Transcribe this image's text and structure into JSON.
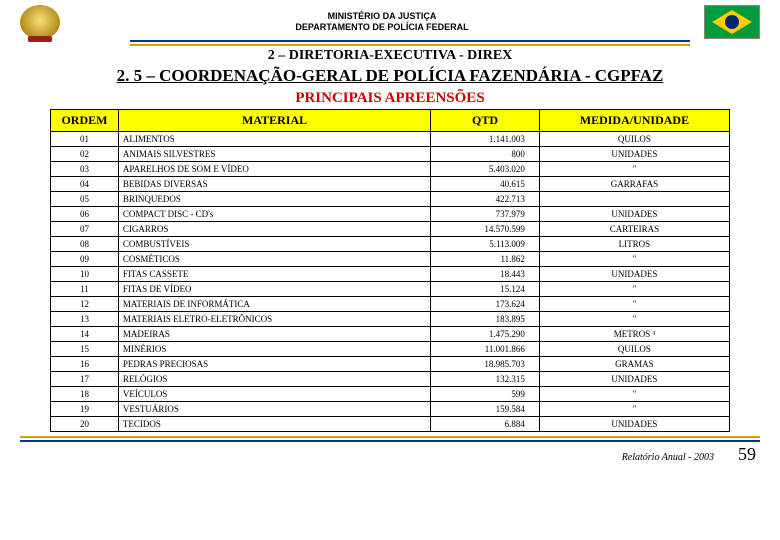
{
  "header": {
    "line1": "MINISTÉRIO DA JUSTIÇA",
    "line2": "DEPARTAMENTO DE POLÍCIA FEDERAL"
  },
  "section": "2 – DIRETORIA-EXECUTIVA - DIREX",
  "title": "2. 5 – COORDENAÇÃO-GERAL DE POLÍCIA FAZENDÁRIA - CGPFAZ",
  "subtitle": "PRINCIPAIS APREENSÕES",
  "table": {
    "columns": [
      "ORDEM",
      "MATERIAL",
      "QTD",
      "MEDIDA/UNIDADE"
    ],
    "rows": [
      [
        "01",
        "ALIMENTOS",
        "1.141.003",
        "QUILOS"
      ],
      [
        "02",
        "ANIMAIS SILVESTRES",
        "800",
        "UNIDADES"
      ],
      [
        "03",
        "APARELHOS DE SOM E VÍDEO",
        "5.403.020",
        "\""
      ],
      [
        "04",
        "BEBIDAS DIVERSAS",
        "40.615",
        "GARRAFAS"
      ],
      [
        "05",
        "BRINQUEDOS",
        "422.713",
        ""
      ],
      [
        "06",
        "COMPACT DISC - CD's",
        "737.979",
        "UNIDADES"
      ],
      [
        "07",
        "CIGARROS",
        "14.570.599",
        "CARTEIRAS"
      ],
      [
        "08",
        "COMBUSTÍVEIS",
        "5.113.009",
        "LITROS"
      ],
      [
        "09",
        "COSMÉTICOS",
        "11.862",
        "\""
      ],
      [
        "10",
        "FITAS CASSETE",
        "18.443",
        "UNIDADES"
      ],
      [
        "11",
        "FITAS DE VÍDEO",
        "15.124",
        "\""
      ],
      [
        "12",
        "MATERIAIS DE INFORMÁTICA",
        "173.624",
        "\""
      ],
      [
        "13",
        "MATERIAIS ELETRO-ELETRÔNICOS",
        "183.895",
        "\""
      ],
      [
        "14",
        "MADEIRAS",
        "1.475.290",
        "METROS ³"
      ],
      [
        "15",
        "MINÉRIOS",
        "11.001.866",
        "QUILOS"
      ],
      [
        "16",
        "PEDRAS PRECIOSAS",
        "18.985.703",
        "GRAMAS"
      ],
      [
        "17",
        "RELÓGIOS",
        "132.315",
        "UNIDADES"
      ],
      [
        "18",
        "VEÍCULOS",
        "599",
        "\""
      ],
      [
        "19",
        "VESTUÁRIOS",
        "159.584",
        "\""
      ],
      [
        "20",
        "TECIDOS",
        "6.884",
        "UNIDADES"
      ]
    ]
  },
  "footer": {
    "report": "Relatório Anual - 2003",
    "page": "59"
  },
  "colors": {
    "rule_blue": "#003399",
    "rule_gold": "#d4a000",
    "header_yellow": "#ffff00",
    "subtitle_red": "#cc0000"
  }
}
